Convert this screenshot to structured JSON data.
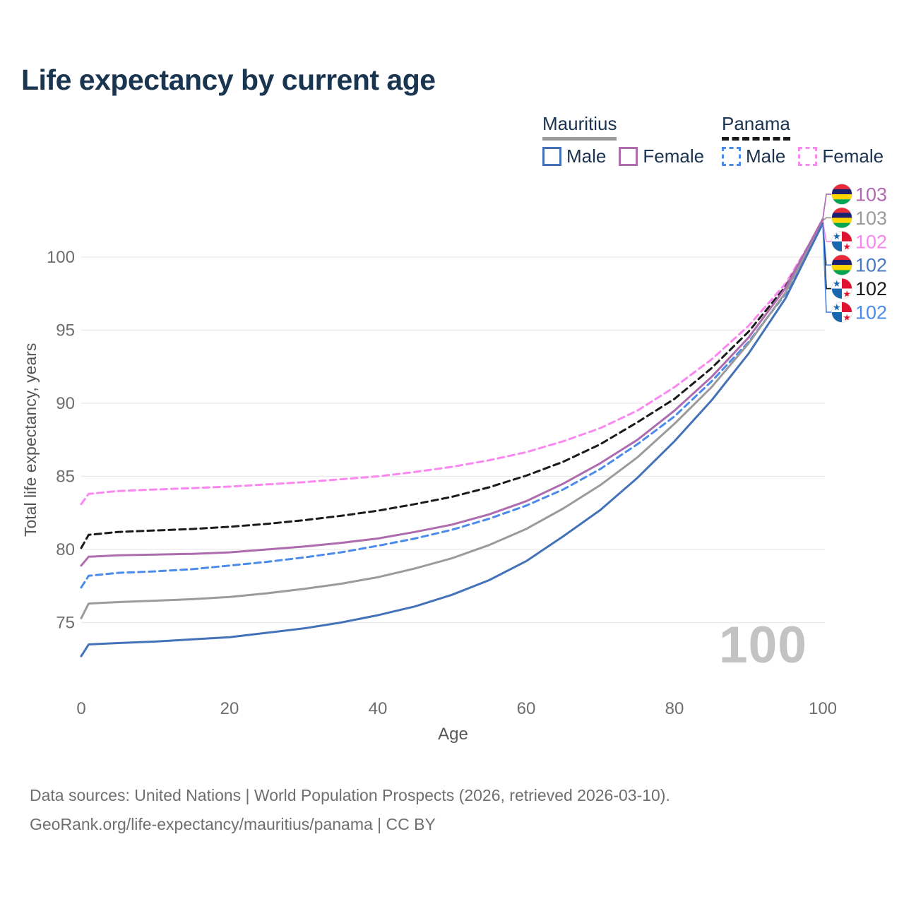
{
  "title": "Life expectancy by current age",
  "watermark": "100",
  "footer": {
    "line1": "Data sources: United Nations | World Population Prospects (2026, retrieved 2026-03-10).",
    "line2": "GeoRank.org/life-expectancy/mauritius/panama | CC BY"
  },
  "legend": {
    "groups": [
      {
        "name": "Mauritius",
        "underline_series": "Mauritius Both sexes",
        "items": [
          {
            "label": "Male",
            "series": "Mauritius Male"
          },
          {
            "label": "Female",
            "series": "Mauritius Female"
          }
        ]
      },
      {
        "name": "Panama",
        "underline_series": "Panama Both sexes",
        "items": [
          {
            "label": "Male",
            "series": "Panama Male"
          },
          {
            "label": "Female",
            "series": "Panama Female"
          }
        ]
      }
    ]
  },
  "colors": {
    "title": "#1a3550",
    "tick": "#6e6e6e",
    "axis_label": "#595959",
    "grid": "#e9e9e9",
    "watermark": "#c3c3c3",
    "footer": "#6f6f6f"
  },
  "flags": {
    "mauritius": {
      "stripes": [
        "#ea2839",
        "#1a206d",
        "#ffd500",
        "#00a551"
      ]
    },
    "panama": {
      "red": "#e01231",
      "blue": "#1766ae",
      "white": "#ffffff"
    }
  },
  "chart_data": {
    "type": "line",
    "title": "Life expectancy by current age",
    "xlabel": "Age",
    "ylabel": "Total life expectancy, years",
    "xlim": [
      0,
      100
    ],
    "ylim": [
      72.5,
      103.5
    ],
    "x_ticks": [
      0,
      20,
      40,
      60,
      80,
      100
    ],
    "y_ticks": [
      75,
      80,
      85,
      90,
      95,
      100
    ],
    "grid": "horizontal",
    "legend_position": "top-right",
    "ages": [
      0,
      1,
      5,
      10,
      15,
      20,
      25,
      30,
      35,
      40,
      45,
      50,
      55,
      60,
      65,
      70,
      75,
      80,
      85,
      90,
      95,
      100
    ],
    "series": [
      {
        "name": "Mauritius Male",
        "country": "Mauritius",
        "sex": "Male",
        "color": "#4472b9",
        "dashed": false,
        "end_label": "102",
        "values": [
          72.7,
          73.5,
          73.6,
          73.7,
          73.85,
          74.0,
          74.3,
          74.6,
          75.0,
          75.5,
          76.1,
          76.9,
          77.9,
          79.2,
          80.9,
          82.7,
          84.9,
          87.4,
          90.2,
          93.4,
          97.2,
          102.3
        ]
      },
      {
        "name": "Mauritius Female",
        "country": "Mauritius",
        "sex": "Female",
        "color": "#ae6cae",
        "dashed": false,
        "end_label": "103",
        "values": [
          78.9,
          79.5,
          79.6,
          79.65,
          79.7,
          79.8,
          80.0,
          80.2,
          80.45,
          80.75,
          81.2,
          81.7,
          82.4,
          83.3,
          84.5,
          85.9,
          87.5,
          89.5,
          91.8,
          94.5,
          97.9,
          102.6
        ]
      },
      {
        "name": "Mauritius Both sexes",
        "country": "Mauritius",
        "sex": "Both",
        "color": "#9b9b9b",
        "dashed": false,
        "end_label": "103",
        "values": [
          75.3,
          76.3,
          76.4,
          76.5,
          76.6,
          76.75,
          77.0,
          77.3,
          77.65,
          78.1,
          78.7,
          79.4,
          80.3,
          81.4,
          82.8,
          84.4,
          86.3,
          88.6,
          91.1,
          94.1,
          97.6,
          102.5
        ]
      },
      {
        "name": "Panama Male",
        "country": "Panama",
        "sex": "Male",
        "color": "#4b8ceb",
        "dashed": true,
        "end_label": "102",
        "values": [
          77.4,
          78.2,
          78.4,
          78.5,
          78.65,
          78.9,
          79.15,
          79.45,
          79.8,
          80.25,
          80.75,
          81.35,
          82.1,
          83.0,
          84.1,
          85.5,
          87.2,
          89.1,
          91.5,
          94.2,
          97.5,
          102.3
        ]
      },
      {
        "name": "Panama Female",
        "country": "Panama",
        "sex": "Female",
        "color": "#fb87f0",
        "dashed": true,
        "end_label": "102",
        "values": [
          83.1,
          83.8,
          84.0,
          84.1,
          84.2,
          84.3,
          84.45,
          84.6,
          84.8,
          85.0,
          85.3,
          85.65,
          86.1,
          86.65,
          87.4,
          88.3,
          89.5,
          91.1,
          93.0,
          95.3,
          98.2,
          102.4
        ]
      },
      {
        "name": "Panama Both sexes",
        "country": "Panama",
        "sex": "Both",
        "color": "#1a1a1a",
        "dashed": true,
        "end_label": "102",
        "values": [
          80.1,
          81.0,
          81.2,
          81.3,
          81.4,
          81.55,
          81.75,
          82.0,
          82.3,
          82.65,
          83.1,
          83.6,
          84.25,
          85.05,
          86.0,
          87.2,
          88.7,
          90.3,
          92.4,
          94.9,
          98.0,
          102.35
        ]
      }
    ],
    "end_labels": [
      {
        "series": "Mauritius Female",
        "flag": "mauritius",
        "value": "103",
        "color": "#b06ab0"
      },
      {
        "series": "Mauritius Both sexes",
        "flag": "mauritius",
        "value": "103",
        "color": "#9b9b9b"
      },
      {
        "series": "Panama Female",
        "flag": "panama",
        "value": "102",
        "color": "#fc86f0"
      },
      {
        "series": "Mauritius Male",
        "flag": "mauritius",
        "value": "102",
        "color": "#4a7ac2"
      },
      {
        "series": "Panama Both sexes",
        "flag": "panama",
        "value": "102",
        "color": "#1a1a1a"
      },
      {
        "series": "Panama Male",
        "flag": "panama",
        "value": "102",
        "color": "#4b8ceb"
      }
    ]
  }
}
